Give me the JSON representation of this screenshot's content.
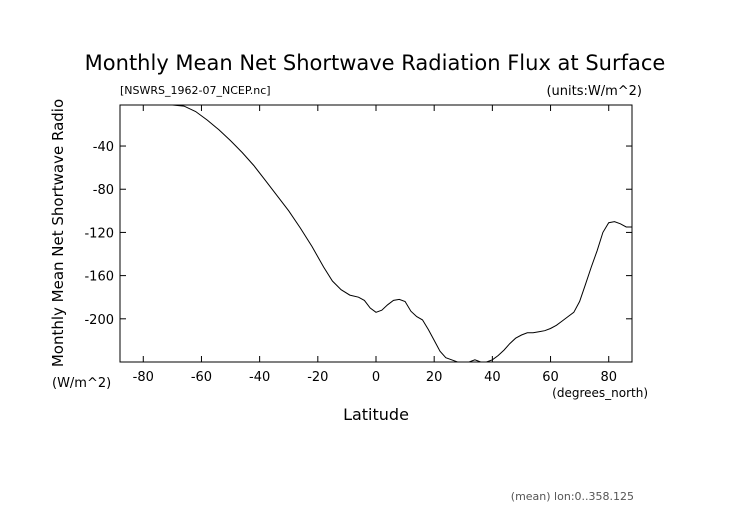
{
  "chart_data": {
    "type": "line",
    "title": "Monthly Mean Net Shortwave Radiation Flux at Surface",
    "file_label": "[NSWRS_1962-07_NCEP.nc]",
    "units_label": "(units:W/m^2)",
    "ylabel": "Monthly Mean Net Shortwave Radio",
    "yunits": "(W/m^2)",
    "xlabel": "Latitude",
    "xunits": "(degrees_north)",
    "footer": "(mean) lon:0..358.125",
    "xlim": [
      -88,
      88
    ],
    "ylim": [
      -240,
      -2
    ],
    "x_ticks": [
      -80,
      -60,
      -40,
      -20,
      0,
      20,
      40,
      60,
      80
    ],
    "y_ticks": [
      -40,
      -80,
      -120,
      -160,
      -200
    ],
    "grid": false,
    "series": [
      {
        "x": [
          -88,
          -75,
          -70,
          -66,
          -62,
          -58,
          -54,
          -50,
          -46,
          -42,
          -38,
          -34,
          -30,
          -26,
          -22,
          -18,
          -15,
          -12,
          -9,
          -6,
          -4,
          -2,
          0,
          2,
          4,
          6,
          8,
          10,
          12,
          14,
          16,
          18,
          20,
          22,
          24,
          26,
          28,
          30,
          32,
          34,
          36,
          38,
          40,
          42,
          44,
          46,
          48,
          50,
          52,
          54,
          56,
          58,
          60,
          62,
          64,
          66,
          68,
          70,
          72,
          74,
          76,
          78,
          80,
          82,
          84,
          86,
          88
        ],
        "y": [
          -2,
          -2,
          -2,
          -3,
          -8,
          -16,
          -25,
          -35,
          -46,
          -58,
          -72,
          -86,
          -100,
          -116,
          -133,
          -152,
          -165,
          -173,
          -178,
          -180,
          -183,
          -190,
          -194,
          -192,
          -187,
          -183,
          -182,
          -184,
          -193,
          -198,
          -201,
          -210,
          -220,
          -230,
          -236,
          -238,
          -240,
          -240,
          -240,
          -238,
          -240,
          -240,
          -238,
          -234,
          -229,
          -223,
          -218,
          -215,
          -213,
          -213,
          -212,
          -211,
          -209,
          -206,
          -202,
          -198,
          -194,
          -184,
          -168,
          -152,
          -137,
          -120,
          -111,
          -110,
          -112,
          -115,
          -115
        ]
      }
    ]
  }
}
